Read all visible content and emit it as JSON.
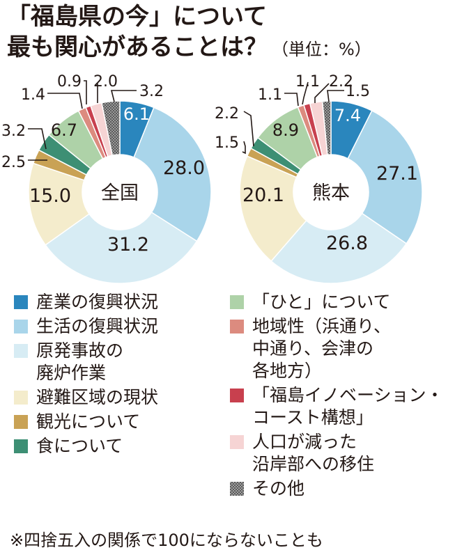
{
  "title": {
    "line1": "「福島県の今」について",
    "line2": "最も関心があることは？",
    "unit": "（単位：%）"
  },
  "chart_data": [
    {
      "type": "pie",
      "center_label": "全国",
      "categories": [
        "産業の復興状況",
        "生活の復興状況",
        "原発事故の廃炉作業",
        "避難区域の現状",
        "観光について",
        "食について",
        "「ひと」について",
        "地域性（浜通り、中通り、会津の各地方）",
        "「福島イノベーション・コースト構想」",
        "人口が減った沿岸部への移住",
        "その他"
      ],
      "values": [
        6.1,
        28.0,
        31.2,
        15.0,
        2.5,
        3.2,
        6.7,
        1.4,
        0.9,
        2.0,
        3.2
      ],
      "labels": [
        "6.1",
        "28.0",
        "31.2",
        "15.0",
        "2.5",
        "3.2",
        "6.7",
        "1.4",
        "0.9",
        "2.0",
        "3.2"
      ]
    },
    {
      "type": "pie",
      "center_label": "熊本",
      "categories": [
        "産業の復興状況",
        "生活の復興状況",
        "原発事故の廃炉作業",
        "避難区域の現状",
        "観光について",
        "食について",
        "「ひと」について",
        "地域性（浜通り、中通り、会津の各地方）",
        "「福島イノベーション・コースト構想」",
        "人口が減った沿岸部への移住",
        "その他"
      ],
      "values": [
        7.4,
        27.1,
        26.8,
        20.1,
        1.5,
        2.2,
        8.9,
        1.1,
        1.1,
        2.2,
        1.5
      ],
      "labels": [
        "7.4",
        "27.1",
        "26.8",
        "20.1",
        "1.5",
        "2.2",
        "8.9",
        "1.1",
        "1.1",
        "2.2",
        "1.5"
      ]
    }
  ],
  "colors": [
    "#2a86bd",
    "#a9d5ea",
    "#d7ecf4",
    "#f4eccc",
    "#c9a255",
    "#3d8f74",
    "#aed2a8",
    "#dc8b7f",
    "#c8404e",
    "#f6d4d4",
    "#8c8c8c"
  ],
  "legend": {
    "left": [
      {
        "lines": [
          "産業の復興状況"
        ],
        "color": "#2a86bd"
      },
      {
        "lines": [
          "生活の復興状況"
        ],
        "color": "#a9d5ea"
      },
      {
        "lines": [
          "原発事故の",
          "廃炉作業"
        ],
        "color": "#d7ecf4"
      },
      {
        "lines": [
          "避難区域の現状"
        ],
        "color": "#f4eccc"
      },
      {
        "lines": [
          "観光について"
        ],
        "color": "#c9a255"
      },
      {
        "lines": [
          "食について"
        ],
        "color": "#3d8f74"
      }
    ],
    "right": [
      {
        "lines": [
          "「ひと」について"
        ],
        "color": "#aed2a8"
      },
      {
        "lines": [
          "地域性（浜通り、",
          "中通り、会津の",
          "各地方）"
        ],
        "color": "#dc8b7f"
      },
      {
        "lines": [
          "「福島イノベーション・",
          "コースト構想」"
        ],
        "color": "#c8404e"
      },
      {
        "lines": [
          "人口が減った",
          "沿岸部への移住"
        ],
        "color": "#f6d4d4"
      },
      {
        "lines": [
          "その他"
        ],
        "color": "#8c8c8c",
        "icon": "crosshatch-pattern"
      }
    ]
  },
  "footnote": "※四捨五入の関係で100にならないことも"
}
